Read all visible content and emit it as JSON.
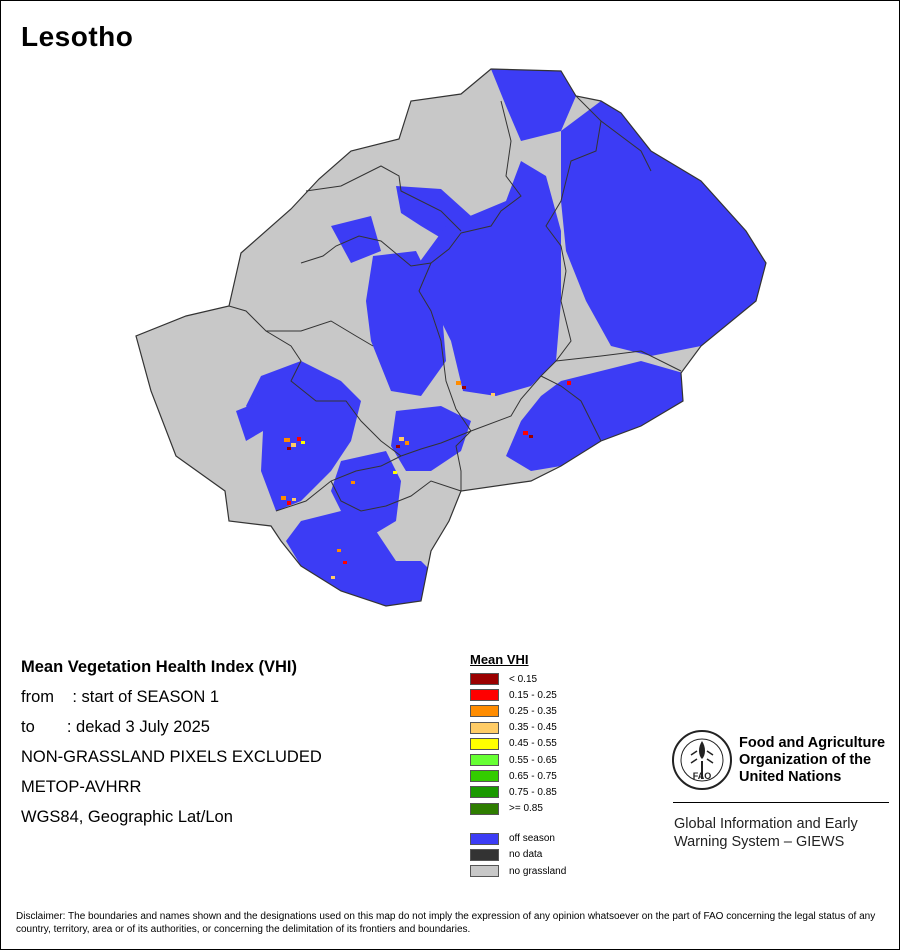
{
  "title": "Lesotho",
  "info": {
    "heading": "Mean Vegetation Health Index (VHI)",
    "from_line": "from    : start of SEASON 1",
    "to_line": "to       : dekad 3 July 2025",
    "exclusion": "NON-GRASSLAND PIXELS EXCLUDED",
    "sensor": "METOP-AVHRR",
    "projection": "WGS84, Geographic Lat/Lon"
  },
  "legend": {
    "title": "Mean VHI",
    "classes": [
      {
        "label": "< 0.15",
        "color": "#9b0000"
      },
      {
        "label": "0.15 - 0.25",
        "color": "#ff0000"
      },
      {
        "label": "0.25 - 0.35",
        "color": "#ff8c00"
      },
      {
        "label": "0.35 - 0.45",
        "color": "#ffcc66"
      },
      {
        "label": "0.45 - 0.55",
        "color": "#ffff00"
      },
      {
        "label": "0.55 - 0.65",
        "color": "#66ff33"
      },
      {
        "label": "0.65 - 0.75",
        "color": "#33cc00"
      },
      {
        "label": "0.75 - 0.85",
        "color": "#1a9900"
      },
      {
        "label": ">= 0.85",
        "color": "#2e7d00"
      }
    ],
    "extra": [
      {
        "label": "off season",
        "color": "#3c3cf5"
      },
      {
        "label": "no data",
        "color": "#333333"
      },
      {
        "label": "no grassland",
        "color": "#c8c8c8"
      }
    ]
  },
  "org": {
    "name": "Food and Agriculture\nOrganization of the\nUnited Nations",
    "logo_letters": "FAO",
    "logo_motto": "FIAT PANIS",
    "system": "Global Information and Early\nWarning System – GIEWS"
  },
  "disclaimer": "Disclaimer: The boundaries and names shown and the designations used on this map do not imply the expression of any opinion whatsoever on the part of FAO concerning the legal status of any country, territory, area or of its authorities, or concerning the delimitation of its frontiers and boundaries.",
  "colors": {
    "no_grassland": "#c8c8c8",
    "off_season": "#3c3cf5",
    "border": "#333333"
  }
}
